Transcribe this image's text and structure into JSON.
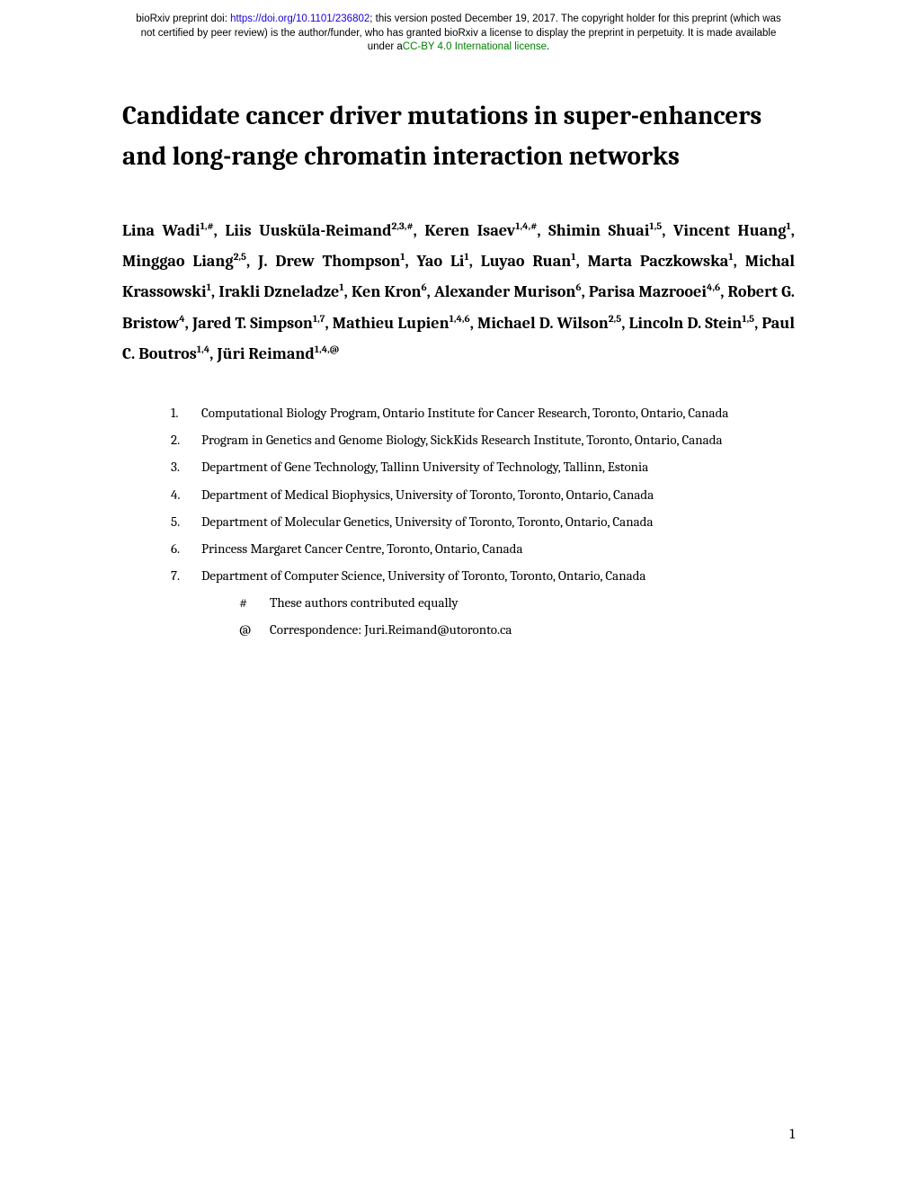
{
  "banner": {
    "prefix": "bioRxiv preprint doi: ",
    "doi_url": "https://doi.org/10.1101/236802",
    "line1_rest": "; this version posted December 19, 2017. The copyright holder for this preprint (which was",
    "line2": "not certified by peer review) is the author/funder, who has granted bioRxiv a license to display the preprint in perpetuity. It is made available",
    "line3_prefix": "under a",
    "license_text": "CC-BY 4.0 International license",
    "line3_suffix": "."
  },
  "title": "Candidate cancer driver mutations in super-enhancers and long-range chromatin interaction networks",
  "authors_html": "Lina Wadi<sup>1,#</sup>, Liis Uusküla-Reimand<sup>2,3,#</sup>, Keren Isaev<sup>1,4,#</sup>, Shimin Shuai<sup>1,5</sup>, Vincent Huang<sup>1</sup>, Minggao Liang<sup>2,5</sup>, J. Drew Thompson<sup>1</sup>, Yao Li<sup>1</sup>, Luyao Ruan<sup>1</sup>, Marta Paczkowska<sup>1</sup>, Michal Krassowski<sup>1</sup>, Irakli Dzneladze<sup>1</sup>, Ken Kron<sup>6</sup>, Alexander Murison<sup>6</sup>, Parisa Mazrooei<sup>4,6</sup>, Robert G. Bristow<sup>4</sup>, Jared T. Simpson<sup>1,7</sup>, Mathieu Lupien<sup>1,4,6</sup>, Michael D. Wilson<sup>2,5</sup>, Lincoln D. Stein<sup>1,5</sup>, Paul C. Boutros<sup>1,4</sup>, Jüri Reimand<sup>1,4,@</sup>",
  "affiliations": [
    {
      "num": "1.",
      "text": "Computational Biology Program, Ontario Institute for Cancer Research, Toronto, Ontario, Canada"
    },
    {
      "num": "2.",
      "text": "Program in Genetics and Genome Biology, SickKids Research Institute, Toronto, Ontario, Canada"
    },
    {
      "num": "3.",
      "text": "Department of Gene Technology, Tallinn University of Technology, Tallinn, Estonia"
    },
    {
      "num": "4.",
      "text": "Department of Medical Biophysics, University of Toronto, Toronto, Ontario, Canada"
    },
    {
      "num": "5.",
      "text": "Department of Molecular Genetics, University of Toronto, Toronto, Ontario, Canada"
    },
    {
      "num": "6.",
      "text": "Princess Margaret Cancer Centre, Toronto, Ontario, Canada"
    },
    {
      "num": "7.",
      "text": "Department of Computer Science, University of Toronto, Toronto, Ontario, Canada"
    }
  ],
  "notes": [
    {
      "sym": "#",
      "text": "These authors contributed equally"
    },
    {
      "sym": "@",
      "text": "Correspondence: Juri.Reimand@utoronto.ca"
    }
  ],
  "page_number": "1"
}
